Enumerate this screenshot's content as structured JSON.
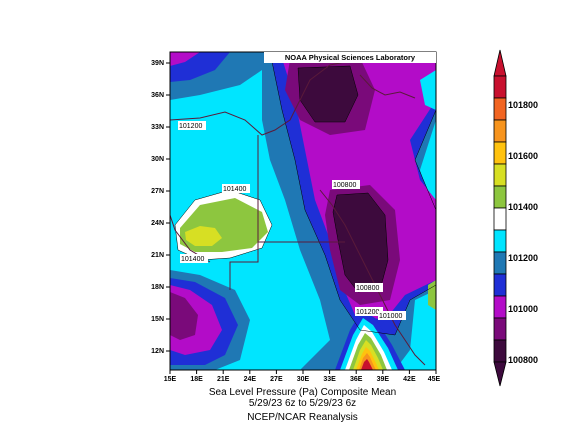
{
  "credit": "NOAA Physical Sciences Laboratory",
  "lat_ticks": [
    "39N",
    "36N",
    "33N",
    "30N",
    "27N",
    "24N",
    "21N",
    "18N",
    "15N",
    "12N"
  ],
  "lon_ticks": [
    "15E",
    "18E",
    "21E",
    "24E",
    "27E",
    "30E",
    "33E",
    "36E",
    "39E",
    "42E",
    "45E"
  ],
  "contour_labels": [
    "101200",
    "101400",
    "101400",
    "100800",
    "100800",
    "101200",
    "101000"
  ],
  "colorbar": {
    "labels": [
      "101800",
      "101600",
      "101400",
      "101200",
      "101000",
      "100800"
    ],
    "colors": [
      "#c8102e",
      "#f26522",
      "#f7941d",
      "#ffc20e",
      "#d7df23",
      "#8dc63f",
      "#ffffff",
      "#00e5ff",
      "#1f78b4",
      "#1f2fd6",
      "#b30cc8",
      "#7a0a7a",
      "#3d0a3d"
    ]
  },
  "caption": {
    "line1": "Sea Level Pressure (Pa)    Composite Mean",
    "line2": "5/29/23 6z  to 5/29/23 6z",
    "line3": "NCEP/NCAR Reanalysis"
  }
}
